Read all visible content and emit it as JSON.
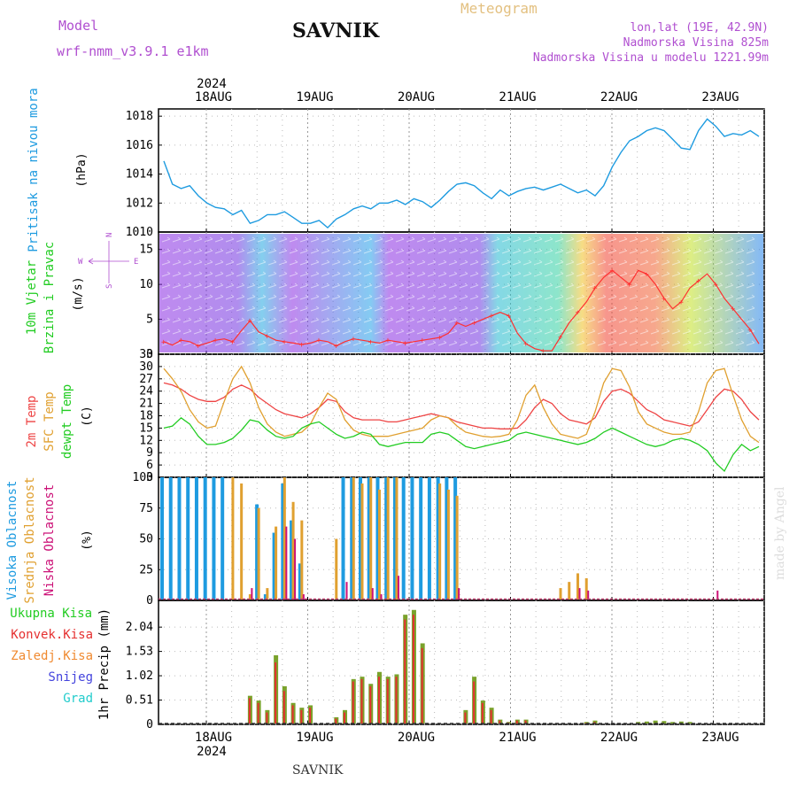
{
  "header": {
    "model_label": "Model",
    "model_name": "wrf-nmm_v3.9.1 e1km",
    "station": "SAVNIK",
    "product": "Meteogram",
    "lonlat": "lon,lat (19E, 42.9N)",
    "elevation": "Nadmorska Visina 825m",
    "model_elevation": "Nadmorska Visina u modelu 1221.99m",
    "year": "2024",
    "footer_station": "SAVNIK",
    "watermark": "made by Angel"
  },
  "colors": {
    "pressure": "#1e9be0",
    "temp2m": "#ee4444",
    "sfc": "#e0a030",
    "dew": "#22cc22",
    "high_cloud": "#1e9be0",
    "mid_cloud": "#e0a030",
    "low_cloud": "#cc1177",
    "total_precip": "#7aa22b",
    "conv_precip": "#e53030",
    "frozen": "#f08a30",
    "snow": "#4444dd",
    "hail": "#22cccc"
  },
  "chart_data": [
    {
      "type": "line",
      "panel": "pressure",
      "ylabel_lines": [
        "Pritisak na nivou mora"
      ],
      "unit": "(hPa)",
      "x_tick_labels": [
        "18AUG",
        "19AUG",
        "20AUG",
        "21AUG",
        "22AUG",
        "23AUG"
      ],
      "ylim": [
        1010,
        1018.5
      ],
      "yticks": [
        1010,
        1012,
        1014,
        1016,
        1018
      ],
      "series": [
        {
          "values": [
            1014.9,
            1013.3,
            1013.0,
            1013.2,
            1012.5,
            1012.0,
            1011.7,
            1011.6,
            1011.2,
            1011.5,
            1010.6,
            1010.8,
            1011.2,
            1011.2,
            1011.4,
            1011.0,
            1010.6,
            1010.6,
            1010.8,
            1010.3,
            1010.9,
            1011.2,
            1011.6,
            1011.8,
            1011.6,
            1012.0,
            1012.0,
            1012.2,
            1011.9,
            1012.3,
            1012.1,
            1011.7,
            1012.2,
            1012.8,
            1013.3,
            1013.4,
            1013.2,
            1012.7,
            1012.3,
            1012.9,
            1012.5,
            1012.8,
            1013.0,
            1013.1,
            1012.9,
            1013.1,
            1013.3,
            1013.0,
            1012.7,
            1012.9,
            1012.5,
            1013.2,
            1014.5,
            1015.5,
            1016.3,
            1016.6,
            1017.0,
            1017.2,
            1017.0,
            1016.4,
            1015.8,
            1015.7,
            1017.0,
            1017.8,
            1017.3,
            1016.6,
            1016.8,
            1016.7,
            1017.0,
            1016.6
          ]
        }
      ]
    },
    {
      "type": "line",
      "panel": "wind",
      "ylabel_lines": [
        "10m Vjetar",
        "Brzina i Pravac"
      ],
      "unit": "(m/s)",
      "ylim": [
        0,
        17.5
      ],
      "yticks": [
        0,
        5,
        10,
        15
      ],
      "compass": {
        "n": "N",
        "s": "S",
        "e": "E",
        "w": "W"
      },
      "series": [
        {
          "values": [
            1.8,
            1.3,
            2.0,
            1.8,
            1.2,
            1.6,
            2.0,
            2.2,
            1.8,
            3.4,
            4.8,
            3.2,
            2.6,
            2.0,
            1.8,
            1.6,
            1.4,
            1.6,
            2.0,
            1.8,
            1.2,
            1.8,
            2.2,
            2.0,
            1.8,
            1.6,
            2.0,
            1.8,
            1.6,
            1.8,
            2.0,
            2.2,
            2.4,
            3.0,
            4.5,
            4.0,
            4.5,
            5.0,
            5.5,
            6.0,
            5.5,
            3.0,
            1.5,
            0.8,
            0.5,
            0.5,
            2.5,
            4.5,
            6.0,
            7.5,
            9.5,
            11.0,
            12.0,
            11.0,
            10.0,
            12.0,
            11.5,
            10.0,
            8.0,
            6.5,
            7.5,
            9.5,
            10.5,
            11.5,
            10.0,
            8.0,
            6.5,
            5.0,
            3.5,
            1.5
          ]
        }
      ]
    },
    {
      "type": "line",
      "panel": "temperature",
      "ylabel_lines": [
        "2m Temp",
        "SFC Temp",
        "dewpt Temp"
      ],
      "unit": "(C)",
      "ylim": [
        3,
        33
      ],
      "yticks": [
        3,
        6,
        9,
        12,
        15,
        18,
        21,
        24,
        27,
        30,
        33
      ],
      "series": [
        {
          "name": "2m Temp",
          "values": [
            26.0,
            25.5,
            24.5,
            23.0,
            22.0,
            21.5,
            21.5,
            22.5,
            24.5,
            25.5,
            24.5,
            22.5,
            21.0,
            19.5,
            18.5,
            18.0,
            17.5,
            18.5,
            20.0,
            22.0,
            21.5,
            19.0,
            17.5,
            17.0,
            17.0,
            17.0,
            16.5,
            16.5,
            17.0,
            17.5,
            18.0,
            18.5,
            18.0,
            17.5,
            16.5,
            16.0,
            15.5,
            15.0,
            15.0,
            14.8,
            14.8,
            15.0,
            17.0,
            20.0,
            22.0,
            21.0,
            18.5,
            17.0,
            16.5,
            16.0,
            17.5,
            21.5,
            24.0,
            24.5,
            23.5,
            21.5,
            19.5,
            18.5,
            17.0,
            16.5,
            16.0,
            15.5,
            16.5,
            19.5,
            22.5,
            24.5,
            24.0,
            22.0,
            19.0,
            17.0
          ]
        },
        {
          "name": "SFC Temp",
          "values": [
            29.5,
            27.0,
            24.0,
            19.5,
            16.5,
            15.0,
            15.5,
            21.5,
            27.0,
            30.0,
            26.0,
            20.0,
            16.0,
            14.0,
            13.0,
            13.5,
            14.0,
            16.0,
            20.0,
            23.5,
            22.0,
            17.0,
            14.5,
            13.5,
            13.0,
            13.0,
            13.0,
            13.5,
            14.0,
            14.5,
            15.0,
            17.0,
            18.0,
            17.5,
            15.5,
            14.0,
            13.5,
            13.0,
            12.8,
            13.0,
            13.5,
            17.0,
            23.0,
            25.5,
            20.0,
            16.0,
            13.5,
            13.0,
            12.5,
            13.5,
            19.0,
            26.0,
            29.5,
            29.0,
            25.0,
            19.0,
            16.0,
            15.0,
            14.0,
            13.5,
            13.5,
            14.0,
            19.0,
            26.0,
            29.0,
            29.5,
            23.0,
            17.0,
            13.0,
            11.5
          ]
        },
        {
          "name": "dewpt Temp",
          "values": [
            15.0,
            15.5,
            17.5,
            16.0,
            13.0,
            11.0,
            11.0,
            11.5,
            12.5,
            14.5,
            17.0,
            16.5,
            14.5,
            13.0,
            12.5,
            13.0,
            15.0,
            16.0,
            16.5,
            15.0,
            13.5,
            12.5,
            13.0,
            14.0,
            13.5,
            11.0,
            10.5,
            11.0,
            11.5,
            11.5,
            11.5,
            13.5,
            14.0,
            13.5,
            12.0,
            10.5,
            10.0,
            10.5,
            11.0,
            11.5,
            12.0,
            13.5,
            14.0,
            13.5,
            13.0,
            12.5,
            12.0,
            11.5,
            11.0,
            11.5,
            12.5,
            14.0,
            15.0,
            14.0,
            13.0,
            12.0,
            11.0,
            10.5,
            11.0,
            12.0,
            12.5,
            12.0,
            11.0,
            9.5,
            6.5,
            4.5,
            8.5,
            11.0,
            9.5,
            10.5
          ]
        }
      ]
    },
    {
      "type": "bar",
      "panel": "cloud",
      "ylabel_lines": [
        "Visoka Oblacnost",
        "Srednja Oblacnost",
        "Niska Oblacnost"
      ],
      "unit": "(%)",
      "ylim": [
        0,
        100
      ],
      "yticks": [
        0,
        25,
        50,
        75,
        100
      ],
      "series": [
        {
          "name": "Visoka Oblacnost",
          "values": [
            100,
            100,
            100,
            100,
            100,
            100,
            100,
            100,
            0,
            0,
            0,
            78,
            5,
            55,
            95,
            65,
            30,
            0,
            0,
            0,
            0,
            100,
            100,
            100,
            100,
            100,
            100,
            100,
            100,
            100,
            100,
            100,
            100,
            100,
            100,
            0,
            0,
            0,
            0,
            0,
            0,
            0,
            0,
            0,
            0,
            0,
            0,
            0,
            0,
            0,
            0,
            0,
            0,
            0,
            0,
            0,
            0,
            0,
            0,
            0,
            0,
            0,
            0,
            0,
            0,
            0,
            0,
            0,
            0,
            0
          ]
        },
        {
          "name": "Srednja Oblacnost",
          "values": [
            0,
            0,
            0,
            0,
            0,
            0,
            0,
            0,
            100,
            95,
            5,
            75,
            10,
            60,
            100,
            80,
            65,
            0,
            0,
            0,
            50,
            0,
            100,
            95,
            100,
            90,
            100,
            100,
            0,
            0,
            0,
            0,
            95,
            90,
            85,
            0,
            0,
            0,
            0,
            0,
            0,
            0,
            0,
            0,
            0,
            0,
            10,
            15,
            22,
            18,
            0,
            0,
            0,
            0,
            0,
            0,
            0,
            0,
            0,
            0,
            0,
            0,
            0,
            0,
            0,
            0,
            0,
            0,
            0,
            0
          ]
        },
        {
          "name": "Niska Oblacnost",
          "values": [
            0,
            0,
            0,
            0,
            0,
            0,
            0,
            0,
            0,
            0,
            10,
            0,
            0,
            0,
            60,
            50,
            5,
            0,
            0,
            0,
            0,
            15,
            0,
            0,
            10,
            5,
            0,
            20,
            0,
            0,
            0,
            0,
            0,
            0,
            10,
            0,
            0,
            0,
            0,
            0,
            0,
            0,
            0,
            0,
            0,
            0,
            0,
            0,
            10,
            8,
            0,
            0,
            0,
            0,
            0,
            0,
            0,
            0,
            0,
            0,
            0,
            0,
            0,
            0,
            8,
            0,
            0,
            0,
            0,
            0
          ]
        }
      ]
    },
    {
      "type": "bar",
      "panel": "precip",
      "unit_label": "1hr Precip (mm)",
      "legend": [
        "Ukupna Kisa",
        "Konvek.Kisa",
        "Zaledj.Kisa",
        "Snijeg",
        "Grad"
      ],
      "ylim": [
        0,
        2.6
      ],
      "yticks": [
        0,
        0.51,
        1.02,
        1.53,
        2.04
      ],
      "series": [
        {
          "name": "Ukupna Kisa",
          "values": [
            0,
            0,
            0,
            0,
            0,
            0,
            0,
            0,
            0,
            0,
            0.6,
            0.5,
            0.3,
            1.45,
            0.8,
            0.45,
            0.35,
            0.4,
            0,
            0,
            0.15,
            0.3,
            0.95,
            1.0,
            0.85,
            1.1,
            1.0,
            1.05,
            2.3,
            2.4,
            1.7,
            0,
            0,
            0,
            0,
            0.3,
            1.0,
            0.5,
            0.35,
            0.1,
            0.05,
            0.1,
            0.1,
            0,
            0,
            0,
            0,
            0,
            0,
            0.05,
            0.08,
            0,
            0,
            0,
            0,
            0.05,
            0.06,
            0.08,
            0.07,
            0.05,
            0.06,
            0.05,
            0,
            0,
            0,
            0,
            0,
            0,
            0,
            0
          ]
        },
        {
          "name": "Konvek.Kisa",
          "values": [
            0,
            0,
            0,
            0,
            0,
            0,
            0,
            0,
            0,
            0,
            0.55,
            0.45,
            0.25,
            1.3,
            0.7,
            0.4,
            0.3,
            0.35,
            0,
            0,
            0.12,
            0.25,
            0.9,
            0.95,
            0.8,
            1.0,
            0.95,
            1.0,
            2.2,
            2.3,
            1.6,
            0,
            0,
            0,
            0,
            0.25,
            0.9,
            0.45,
            0.3,
            0.08,
            0.04,
            0.08,
            0.08,
            0,
            0,
            0,
            0,
            0,
            0,
            0.03,
            0.05,
            0,
            0,
            0,
            0,
            0,
            0,
            0,
            0,
            0,
            0,
            0,
            0,
            0,
            0,
            0,
            0,
            0,
            0,
            0
          ]
        }
      ]
    }
  ]
}
